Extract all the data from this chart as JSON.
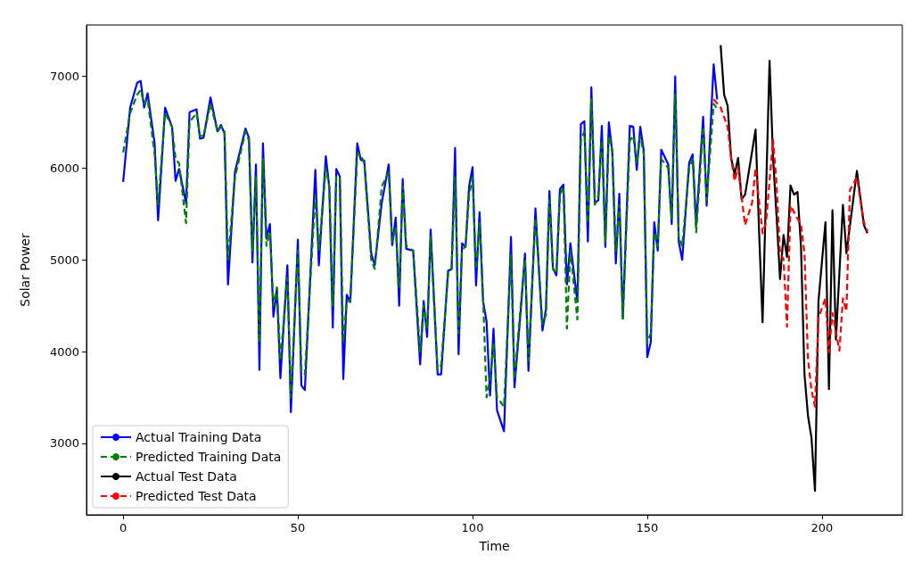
{
  "chart_data": {
    "type": "line",
    "xlabel": "Time",
    "ylabel": "Solar Power",
    "xlim": [
      -10.5,
      223
    ],
    "xticks": [
      0,
      50,
      100,
      150,
      200
    ],
    "ylim": [
      2220,
      7560
    ],
    "yticks": [
      3000,
      4000,
      5000,
      6000,
      7000
    ],
    "grid": false,
    "legend": "bottom left",
    "marker": "none",
    "series": [
      {
        "name": "Actual Training Data",
        "color": "#0000ff",
        "line_style": "solid",
        "x": [
          0,
          2,
          4,
          5,
          6,
          7,
          9,
          10,
          12,
          14,
          15,
          16,
          18,
          19,
          21,
          22,
          23,
          25,
          27,
          28,
          29,
          30,
          32,
          35,
          36,
          37,
          38,
          39,
          40,
          41,
          42,
          43,
          44,
          45,
          47,
          48,
          50,
          51,
          52,
          55,
          56,
          58,
          59,
          60,
          61,
          62,
          63,
          64,
          65,
          67,
          68,
          69,
          71,
          72,
          74,
          76,
          77,
          78,
          79,
          80,
          81,
          83,
          85,
          86,
          87,
          88,
          90,
          91,
          93,
          94,
          95,
          96,
          97,
          98,
          99,
          100,
          101,
          102,
          103,
          104,
          105,
          106,
          107,
          109,
          111,
          112,
          114,
          115,
          116,
          118,
          120,
          121,
          122,
          123,
          124,
          125,
          126,
          127,
          128,
          130,
          131,
          132,
          133,
          134,
          135,
          136,
          137,
          138,
          139,
          140,
          141,
          142,
          143,
          145,
          146,
          147,
          148,
          149,
          150,
          151,
          152,
          153,
          154,
          156,
          157,
          158,
          159,
          160,
          162,
          163,
          164,
          166,
          167,
          169,
          170
        ],
        "values": [
          5850,
          6660,
          6930,
          6950,
          6660,
          6815,
          6270,
          5430,
          6660,
          6445,
          5860,
          5990,
          5620,
          6610,
          6640,
          6320,
          6330,
          6770,
          6400,
          6470,
          6380,
          4730,
          5960,
          6430,
          6330,
          4970,
          6040,
          3800,
          6270,
          5230,
          5390,
          4380,
          4680,
          3710,
          4940,
          3340,
          5220,
          3630,
          3580,
          5980,
          4940,
          6130,
          5790,
          4260,
          5990,
          5910,
          3700,
          4620,
          4540,
          6270,
          6090,
          6080,
          5070,
          4940,
          5620,
          6040,
          5160,
          5460,
          4500,
          5880,
          5120,
          5100,
          3860,
          4550,
          4160,
          5330,
          3750,
          3750,
          4880,
          4900,
          6220,
          3970,
          5180,
          5140,
          5800,
          6010,
          4720,
          5520,
          4550,
          4330,
          3520,
          4250,
          3360,
          3130,
          5250,
          3610,
          4550,
          5070,
          3790,
          5560,
          4230,
          4460,
          5750,
          4910,
          4830,
          5770,
          5820,
          4730,
          5180,
          4540,
          6480,
          6510,
          5200,
          6880,
          5620,
          5650,
          6460,
          5140,
          6500,
          6170,
          4960,
          5720,
          4360,
          6460,
          6450,
          5980,
          6450,
          6190,
          3940,
          4100,
          5410,
          5100,
          6200,
          6040,
          5390,
          7000,
          5200,
          5000,
          6060,
          6150,
          5380,
          6560,
          5590,
          7130,
          6750
        ]
      },
      {
        "name": "Predicted Training Data",
        "color": "#008000",
        "line_style": "dashed",
        "x": [
          0,
          2,
          4,
          5,
          6,
          7,
          9,
          10,
          12,
          14,
          15,
          16,
          18,
          19,
          21,
          22,
          23,
          25,
          27,
          28,
          29,
          30,
          32,
          35,
          36,
          37,
          38,
          39,
          40,
          41,
          42,
          43,
          44,
          45,
          47,
          48,
          50,
          51,
          52,
          55,
          56,
          58,
          59,
          60,
          61,
          62,
          63,
          64,
          65,
          67,
          68,
          69,
          71,
          72,
          74,
          76,
          77,
          78,
          79,
          80,
          81,
          83,
          85,
          86,
          87,
          88,
          90,
          91,
          93,
          94,
          95,
          96,
          97,
          98,
          99,
          100,
          101,
          102,
          103,
          104,
          105,
          106,
          107,
          109,
          111,
          112,
          114,
          115,
          116,
          118,
          120,
          121,
          122,
          123,
          124,
          125,
          126,
          127,
          128,
          130,
          131,
          132,
          133,
          134,
          135,
          136,
          137,
          138,
          139,
          140,
          141,
          142,
          143,
          145,
          146,
          147,
          148,
          149,
          150,
          151,
          152,
          153,
          154,
          156,
          157,
          158,
          159,
          160,
          162,
          163,
          164,
          166,
          167,
          169,
          170
        ],
        "values": [
          6170,
          6600,
          6800,
          6850,
          6700,
          6750,
          6150,
          5600,
          6600,
          6450,
          6100,
          6050,
          5400,
          6500,
          6600,
          6350,
          6350,
          6700,
          6400,
          6450,
          6400,
          5000,
          5900,
          6400,
          6300,
          5100,
          5900,
          4100,
          6100,
          5150,
          5300,
          4500,
          4700,
          3900,
          4800,
          3500,
          5100,
          3800,
          3750,
          5700,
          5100,
          6000,
          5800,
          4500,
          5900,
          5900,
          4100,
          4550,
          4550,
          6150,
          6150,
          6050,
          5000,
          4900,
          5800,
          5950,
          5200,
          5350,
          4700,
          5800,
          5150,
          5100,
          4000,
          4500,
          4250,
          5250,
          3800,
          3850,
          4850,
          4900,
          5900,
          4200,
          5100,
          5150,
          5700,
          5900,
          4900,
          5400,
          4600,
          3500,
          3700,
          4100,
          3500,
          3400,
          5050,
          3700,
          4600,
          5000,
          3900,
          5450,
          4300,
          4400,
          5650,
          4900,
          4850,
          5700,
          5800,
          4250,
          5100,
          4350,
          6300,
          6400,
          5400,
          6750,
          5600,
          5700,
          6300,
          5200,
          6350,
          6200,
          5100,
          5600,
          4350,
          6300,
          6350,
          6050,
          6350,
          6150,
          4100,
          4200,
          5300,
          5150,
          6100,
          6000,
          5450,
          6800,
          5250,
          5150,
          6000,
          6100,
          5300,
          6450,
          5650,
          6700,
          6650
        ]
      },
      {
        "name": "Actual Test Data",
        "color": "#000000",
        "line_style": "solid",
        "x": [
          171,
          172,
          173,
          174,
          175,
          176,
          177,
          178,
          180,
          181,
          182,
          183,
          185,
          186,
          187,
          188,
          189,
          190,
          191,
          192,
          193,
          194,
          195,
          196,
          197,
          198,
          199,
          201,
          202,
          203,
          204,
          206,
          207,
          210,
          212,
          213
        ],
        "values": [
          7340,
          6800,
          6680,
          6110,
          5930,
          6110,
          5660,
          5710,
          6180,
          6420,
          5310,
          4320,
          7170,
          6110,
          5480,
          4790,
          5270,
          5030,
          5810,
          5710,
          5740,
          5140,
          3750,
          3300,
          3060,
          2480,
          4550,
          5410,
          3590,
          5540,
          4130,
          5600,
          5070,
          5970,
          5380,
          5290
        ]
      },
      {
        "name": "Predicted Test Data",
        "color": "#ff0000",
        "line_style": "dashed",
        "x": [
          169,
          171,
          173,
          174,
          175,
          176,
          178,
          180,
          181,
          183,
          184,
          186,
          187,
          188,
          189,
          190,
          191,
          192,
          194,
          195,
          196,
          197,
          198,
          199,
          201,
          202,
          203,
          205,
          206,
          207,
          208,
          210,
          212,
          213
        ],
        "values": [
          6750,
          6660,
          6450,
          6110,
          5860,
          6000,
          5380,
          5620,
          6000,
          5290,
          5410,
          6310,
          5830,
          5070,
          5010,
          4270,
          5590,
          5520,
          5380,
          5070,
          3920,
          3580,
          3400,
          4370,
          4580,
          3990,
          4420,
          4010,
          4580,
          4440,
          5760,
          5900,
          5410,
          5310
        ]
      }
    ]
  }
}
